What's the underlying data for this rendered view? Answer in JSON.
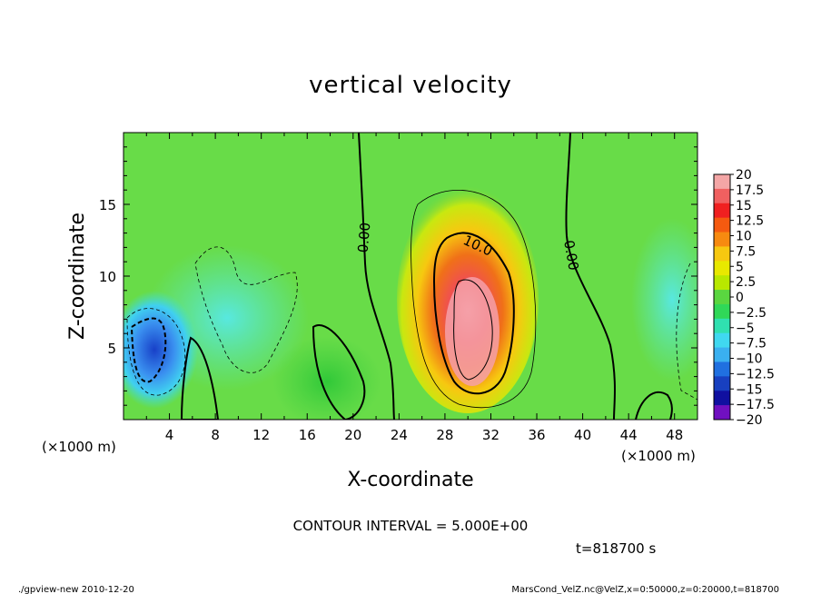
{
  "chart_data": {
    "type": "heatmap",
    "title": "vertical velocity",
    "xlabel": "X-coordinate",
    "ylabel": "Z-coordinate",
    "x_unit_left": "(×1000 m)",
    "x_unit_right": "(×1000 m)",
    "xlim": [
      0,
      50
    ],
    "ylim": [
      0,
      20
    ],
    "x_ticks": [
      4,
      8,
      12,
      16,
      20,
      24,
      28,
      32,
      36,
      40,
      44,
      48
    ],
    "x_tick_labels": [
      "4",
      "8",
      "12",
      "16",
      "20",
      "24",
      "28",
      "32",
      "36",
      "40",
      "44",
      "48"
    ],
    "y_ticks": [
      5,
      10,
      15
    ],
    "y_tick_labels": [
      "5",
      "10",
      "15"
    ],
    "colorbar": {
      "labels": [
        "20",
        "17.5",
        "15",
        "12.5",
        "10",
        "7.5",
        "5",
        "2.5",
        "0",
        "−2.5",
        "−5",
        "−7.5",
        "−10",
        "−12.5",
        "−15",
        "−17.5",
        "−20"
      ],
      "colors": [
        "#f4a6a6",
        "#f06060",
        "#f02020",
        "#f55a10",
        "#f78a10",
        "#f7c810",
        "#e8e800",
        "#b8e800",
        "#5ad640",
        "#30d858",
        "#30e0b0",
        "#40d8f0",
        "#3ab0f0",
        "#2070e0",
        "#1840c0",
        "#1010a0",
        "#7010c0"
      ]
    },
    "contour_labels": [
      "0.00",
      "10.0",
      "0.00"
    ],
    "contour_interval_text": "CONTOUR INTERVAL = 5.000E+00",
    "time_text": "t=818700 s",
    "footer_left": "./gpview-new   2010-12-20",
    "footer_right": "MarsCond_VelZ.nc@VelZ,x=0:50000,z=0:20000,t=818700",
    "features": [
      {
        "name": "updraft",
        "x_center": 30,
        "z_center": 7,
        "peak": 20
      },
      {
        "name": "downdraft",
        "x_center": 3,
        "z_center": 5,
        "peak": -12.5
      }
    ]
  }
}
